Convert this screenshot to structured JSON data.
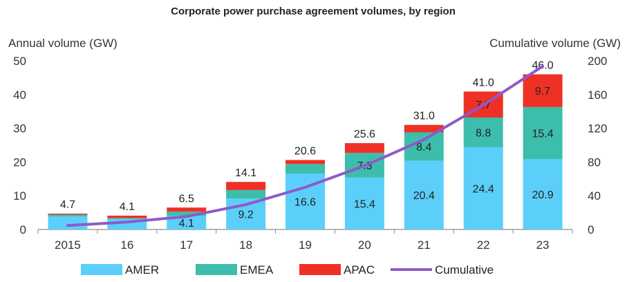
{
  "chart_data": {
    "type": "bar",
    "title": "Corporate power purchase agreement volumes, by region",
    "ylabel": "Annual volume  (GW)",
    "y2label": "Cumulative  volume  (GW)",
    "categories": [
      "2015",
      "16",
      "17",
      "18",
      "19",
      "20",
      "21",
      "22",
      "23"
    ],
    "ylim": [
      0,
      50
    ],
    "yticks": [
      0,
      10,
      20,
      30,
      40,
      50
    ],
    "y2lim": [
      0,
      200
    ],
    "y2ticks": [
      0,
      40,
      80,
      120,
      160,
      200
    ],
    "stacked": true,
    "series": [
      {
        "name": "AMER",
        "color": "#5BCFF9",
        "values": [
          3.9,
          3.1,
          4.1,
          9.2,
          16.6,
          15.4,
          20.4,
          24.4,
          20.9
        ],
        "labels": [
          "",
          "",
          "4.1",
          "9.2",
          "16.6",
          "15.4",
          "20.4",
          "24.4",
          "20.9"
        ]
      },
      {
        "name": "EMEA",
        "color": "#3DBDAC",
        "values": [
          0.5,
          0.3,
          1.2,
          2.5,
          2.8,
          7.3,
          8.4,
          8.8,
          15.4
        ],
        "labels": [
          "",
          "",
          "",
          "",
          "",
          "7.3",
          "8.4",
          "8.8",
          "15.4"
        ]
      },
      {
        "name": "APAC",
        "color": "#EE3124",
        "values": [
          0.3,
          0.7,
          1.2,
          2.4,
          1.2,
          2.9,
          2.2,
          7.7,
          9.7
        ],
        "labels": [
          "",
          "",
          "",
          "",
          "",
          "",
          "",
          "7.7",
          "9.7"
        ]
      }
    ],
    "totals": [
      "4.7",
      "4.1",
      "6.5",
      "14.1",
      "20.6",
      "25.6",
      "31.0",
      "41.0",
      "46.0"
    ],
    "cumulative": {
      "name": "Cumulative",
      "color": "#8E5AC8",
      "values": [
        4.7,
        8.8,
        15.3,
        29.4,
        50.0,
        75.6,
        106.6,
        147.6,
        193.6
      ]
    },
    "legend": [
      "AMER",
      "EMEA",
      "APAC",
      "Cumulative"
    ],
    "legend_position": "bottom",
    "grid": false
  }
}
